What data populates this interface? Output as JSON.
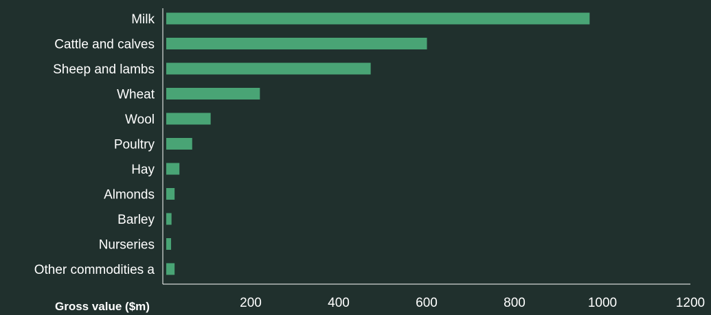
{
  "chart_data": {
    "type": "bar",
    "orientation": "horizontal",
    "categories": [
      "Milk",
      "Cattle and calves",
      "Sheep and lambs",
      "Wheat",
      "Wool",
      "Poultry",
      "Hay",
      "Almonds",
      "Barley",
      "Nurseries",
      "Other commodities a"
    ],
    "values": [
      963,
      593,
      465,
      213,
      101,
      59,
      30,
      19,
      12,
      11,
      19
    ],
    "xlabel": "Gross value ($m)",
    "ylabel": "",
    "xlim": [
      0,
      1200
    ],
    "xticks": [
      200,
      400,
      600,
      800,
      1000,
      1200
    ],
    "grid": false,
    "colors": {
      "background": "#20302d",
      "bar": "#49a475",
      "text": "#ffffff",
      "axis": "#ffffff"
    }
  }
}
